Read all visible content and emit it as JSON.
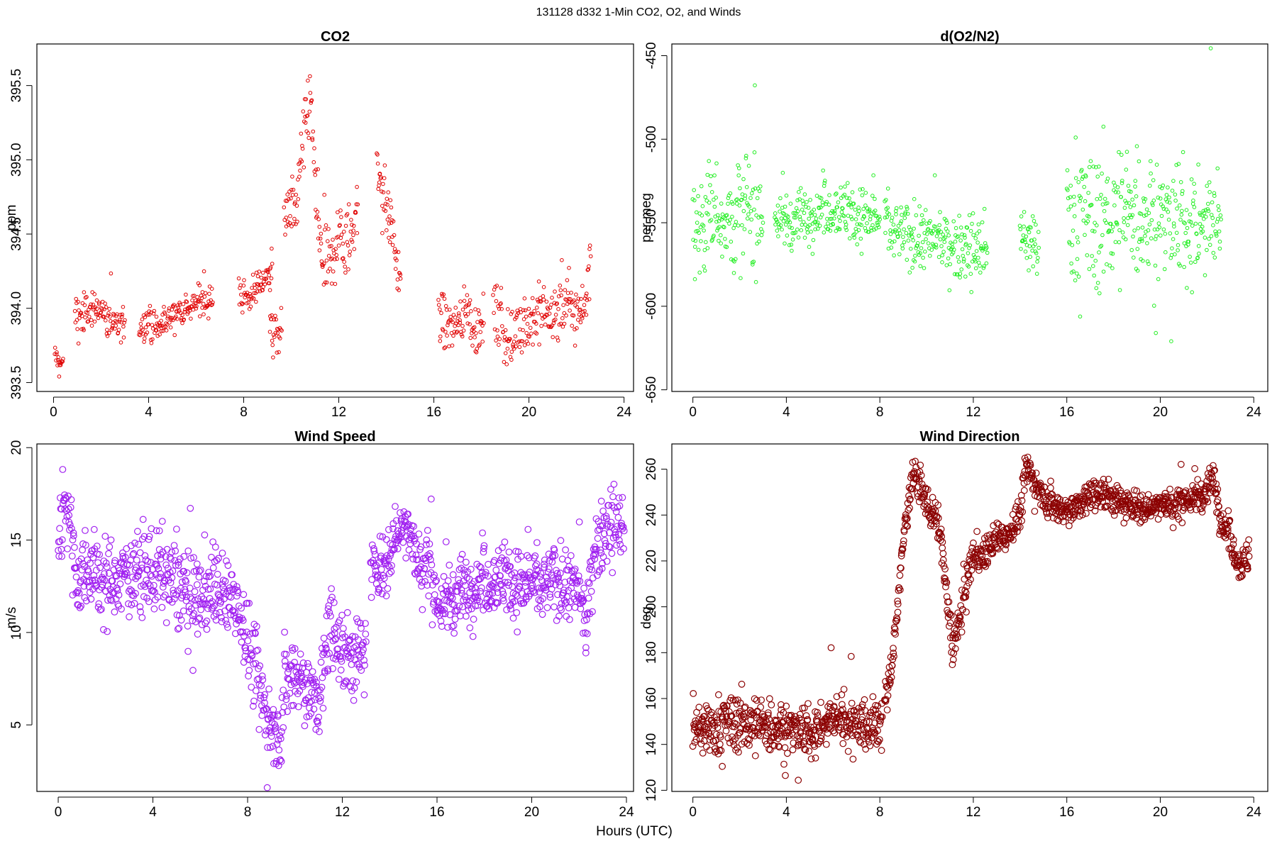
{
  "figure": {
    "suptitle": "131128   d332   1-Min CO2, O2, and Winds",
    "xlabel": "Hours (UTC)"
  },
  "chart_data": [
    {
      "id": "co2",
      "type": "scatter",
      "title": "CO2",
      "ylabel": "ppm",
      "color": "#e00000",
      "marker": "small-open-circle",
      "xlim": [
        -0.7,
        24.4
      ],
      "ylim": [
        393.44,
        395.78
      ],
      "xticks": [
        0,
        4,
        8,
        12,
        16,
        20,
        24
      ],
      "yticks": [
        393.5,
        394.0,
        394.5,
        395.0,
        395.5
      ],
      "ytick_labels": [
        "393.5",
        "394.0",
        "394.5",
        "395.0",
        "395.5"
      ],
      "segments": [
        {
          "x": [
            0.05,
            0.1,
            0.2,
            0.3,
            0.4
          ],
          "y": [
            393.66,
            393.69,
            393.65,
            393.62,
            393.66
          ],
          "noise": 0.03
        },
        {
          "x": [
            0.9,
            1.2,
            1.5,
            1.8,
            2.1,
            2.4,
            2.7,
            3.0
          ],
          "y": [
            393.96,
            393.95,
            393.98,
            394.02,
            393.97,
            393.9,
            393.88,
            393.92
          ],
          "noise": 0.06
        },
        {
          "x": [
            3.6,
            4.0,
            4.4,
            4.8,
            5.2,
            5.6,
            6.0,
            6.4,
            6.7
          ],
          "y": [
            393.87,
            393.9,
            393.86,
            393.93,
            393.98,
            393.99,
            394.04,
            394.07,
            394.04
          ],
          "noise": 0.05
        },
        {
          "x": [
            7.8,
            8.2,
            8.6,
            9.0,
            9.2
          ],
          "y": [
            394.1,
            394.08,
            394.15,
            394.22,
            394.3
          ],
          "noise": 0.06
        },
        {
          "x": [
            9.1,
            9.3,
            9.6
          ],
          "y": [
            393.9,
            393.8,
            393.85
          ],
          "noise": 0.07
        },
        {
          "x": [
            9.7,
            9.9,
            10.1,
            10.4,
            10.6,
            10.8,
            11.0,
            11.2,
            11.4,
            11.7,
            12.0,
            12.3,
            12.6,
            12.8
          ],
          "y": [
            394.6,
            394.67,
            394.63,
            394.95,
            395.2,
            395.45,
            394.85,
            394.4,
            394.25,
            394.3,
            394.5,
            394.4,
            394.55,
            394.7
          ],
          "noise": 0.12
        },
        {
          "x": [
            13.6,
            13.8,
            14.0,
            14.2,
            14.4,
            14.6
          ],
          "y": [
            394.95,
            394.85,
            394.7,
            394.55,
            394.35,
            394.2
          ],
          "noise": 0.1
        },
        {
          "x": [
            16.2,
            16.6,
            17.0,
            17.4,
            17.8,
            18.1
          ],
          "y": [
            393.95,
            393.88,
            393.9,
            394.0,
            393.85,
            393.9
          ],
          "noise": 0.09
        },
        {
          "x": [
            18.5,
            18.9,
            19.3,
            19.6,
            20.0,
            20.4,
            20.8,
            21.2,
            21.6,
            22.0,
            22.3,
            22.6
          ],
          "y": [
            394.0,
            393.85,
            393.75,
            393.95,
            393.9,
            393.95,
            393.98,
            393.95,
            394.02,
            394.0,
            393.98,
            394.35
          ],
          "noise": 0.1
        }
      ],
      "pts_per_hour": 48
    },
    {
      "id": "o2",
      "type": "scatter",
      "title": "d(O2/N2)",
      "ylabel": "per meg",
      "color": "#22ee22",
      "marker": "small-open-circle",
      "xlim": [
        -0.9,
        24.6
      ],
      "ylim": [
        -651,
        -443
      ],
      "xticks": [
        0,
        4,
        8,
        12,
        16,
        20,
        24
      ],
      "yticks": [
        -650,
        -600,
        -550,
        -500,
        -450
      ],
      "ytick_labels": [
        "-650",
        "-600",
        "-550",
        "-500",
        "-450"
      ],
      "segments": [
        {
          "x": [
            0.0,
            0.5,
            1.0,
            1.5,
            2.0,
            2.5,
            3.0
          ],
          "y": [
            -555,
            -545,
            -540,
            -550,
            -545,
            -540,
            -550
          ],
          "noise": 16
        },
        {
          "x": [
            3.5,
            4.0,
            5.0,
            6.0,
            7.0,
            8.0
          ],
          "y": [
            -545,
            -550,
            -545,
            -540,
            -545,
            -548
          ],
          "noise": 8
        },
        {
          "x": [
            8.2,
            9.0,
            10.0,
            11.0,
            12.0,
            12.6
          ],
          "y": [
            -550,
            -558,
            -560,
            -562,
            -565,
            -568
          ],
          "noise": 9
        },
        {
          "x": [
            14.0,
            14.4,
            14.8
          ],
          "y": [
            -560,
            -562,
            -565
          ],
          "noise": 10
        },
        {
          "x": [
            16.0,
            17.0,
            18.0,
            19.0,
            20.0,
            21.0,
            22.0,
            22.6
          ],
          "y": [
            -540,
            -550,
            -545,
            -545,
            -548,
            -550,
            -548,
            -548
          ],
          "noise": 20
        }
      ],
      "pts_per_hour": 50
    },
    {
      "id": "ws",
      "type": "scatter",
      "title": "Wind Speed",
      "ylabel": "m/s",
      "color": "#a020f0",
      "marker": "open-circle",
      "xlim": [
        -0.9,
        24.3
      ],
      "ylim": [
        1.4,
        20.2
      ],
      "xticks": [
        0,
        4,
        8,
        12,
        16,
        20,
        24
      ],
      "yticks": [
        5,
        10,
        15,
        20
      ],
      "ytick_labels": [
        "5",
        "10",
        "15",
        "20"
      ],
      "segments": [
        {
          "x": [
            0.0,
            0.3,
            0.5,
            0.8,
            1.2,
            1.8,
            2.5,
            3.0,
            3.5,
            4.0,
            4.5,
            5.0,
            5.5,
            6.0,
            6.5,
            7.0,
            7.5,
            8.0,
            8.5,
            9.0,
            9.3,
            9.6,
            10.0,
            10.5,
            11.0,
            11.5,
            12.0,
            12.5,
            13.0
          ],
          "y": [
            14.5,
            17.5,
            16.5,
            12.5,
            13.8,
            12.8,
            12.5,
            13.5,
            13.0,
            13.5,
            13.0,
            12.5,
            12.0,
            11.5,
            12.8,
            11.8,
            12.0,
            9.5,
            7.0,
            5.0,
            4.0,
            7.5,
            8.0,
            7.0,
            6.0,
            10.5,
            9.0,
            8.5,
            9.5
          ],
          "noise": 1.1
        },
        {
          "x": [
            13.2,
            13.8,
            14.4,
            14.8,
            15.2,
            15.6,
            16.0,
            16.5,
            17.0,
            17.5,
            18.0,
            18.5,
            19.0,
            19.5,
            20.0,
            20.5,
            21.0,
            21.5,
            22.0,
            22.3,
            22.6,
            23.0,
            23.5,
            23.9
          ],
          "y": [
            13.5,
            13.8,
            15.5,
            16.0,
            13.5,
            14.0,
            11.5,
            11.8,
            12.2,
            12.5,
            12.8,
            13.0,
            13.0,
            12.5,
            12.8,
            12.5,
            12.8,
            12.5,
            12.2,
            10.0,
            14.5,
            15.5,
            16.0,
            15.5
          ],
          "noise": 0.9
        }
      ],
      "pts_per_hour": 56
    },
    {
      "id": "wd",
      "type": "scatter",
      "title": "Wind Direction",
      "ylabel": "deg",
      "color": "#8b0000",
      "marker": "open-circle",
      "xlim": [
        -0.9,
        24.6
      ],
      "ylim": [
        119.5,
        271
      ],
      "xticks": [
        0,
        4,
        8,
        12,
        16,
        20,
        24
      ],
      "yticks": [
        120,
        140,
        160,
        180,
        200,
        220,
        240,
        260
      ],
      "ytick_labels": [
        "120",
        "140",
        "160",
        "180",
        "200",
        "220",
        "240",
        "260"
      ],
      "segments": [
        {
          "x": [
            0.0,
            1.0,
            2.0,
            3.0,
            4.0,
            5.0,
            6.0,
            7.0,
            7.8,
            8.1
          ],
          "y": [
            145,
            148,
            150,
            148,
            147,
            145,
            152,
            150,
            148,
            152
          ],
          "noise": 6
        },
        {
          "x": [
            8.2,
            8.5,
            8.8,
            9.1,
            9.4,
            9.7,
            10.0,
            10.3,
            10.6,
            10.9,
            11.1,
            11.4,
            11.7,
            12.0,
            12.5,
            13.0,
            13.5,
            14.0,
            14.3,
            14.6,
            15.0,
            15.5,
            16.0,
            16.5,
            17.0,
            17.5,
            18.0,
            18.5,
            19.0,
            19.5,
            20.0,
            20.5,
            21.0,
            21.5,
            22.0,
            22.3,
            22.6,
            23.0,
            23.4,
            23.8
          ],
          "y": [
            158,
            172,
            205,
            238,
            258,
            253,
            245,
            240,
            232,
            200,
            182,
            193,
            210,
            222,
            223,
            230,
            232,
            240,
            262,
            255,
            248,
            244,
            242,
            244,
            248,
            250,
            247,
            245,
            245,
            242,
            246,
            244,
            246,
            248,
            250,
            257,
            238,
            230,
            218,
            222
          ],
          "noise": 3.5
        }
      ],
      "pts_per_hour": 60
    }
  ]
}
